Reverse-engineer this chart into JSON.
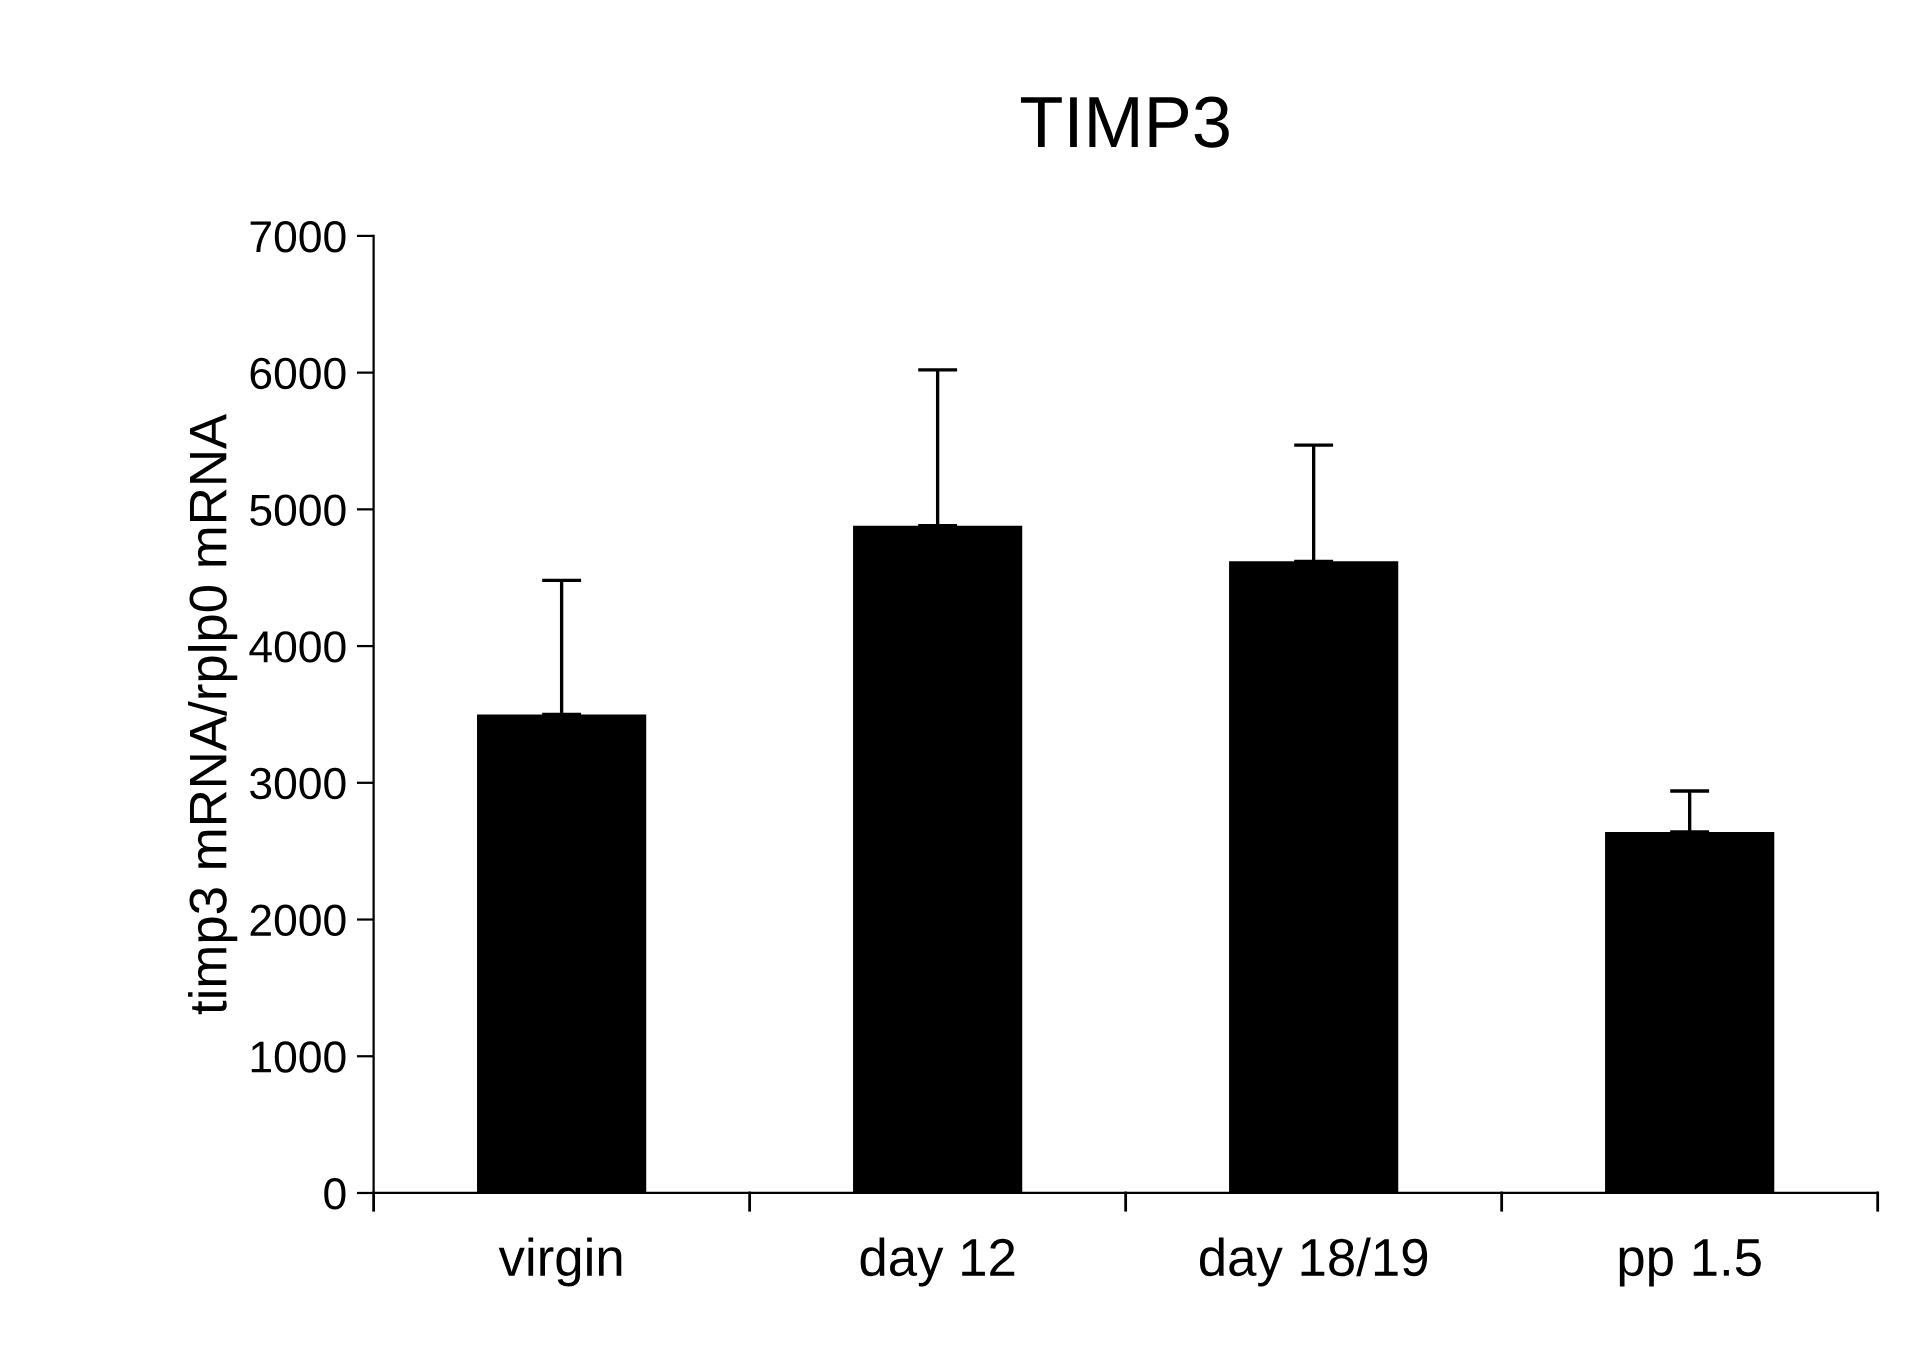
{
  "chart_data": {
    "type": "bar",
    "title": "TIMP3",
    "ylabel": "timp3 mRNA/rplp0 mRNA",
    "categories": [
      "virgin",
      "day 12",
      "day 18/19",
      "pp 1.5"
    ],
    "values": [
      3500,
      4880,
      4620,
      2640
    ],
    "errors": [
      [
        3500,
        4480
      ],
      [
        4880,
        6020
      ],
      [
        4620,
        5470
      ],
      [
        2640,
        2940
      ]
    ],
    "color": "#000000",
    "ylim": [
      0,
      7000
    ],
    "yticks": [
      0,
      1000,
      2000,
      3000,
      4000,
      5000,
      6000,
      7000
    ],
    "grid": false,
    "legend": false
  }
}
